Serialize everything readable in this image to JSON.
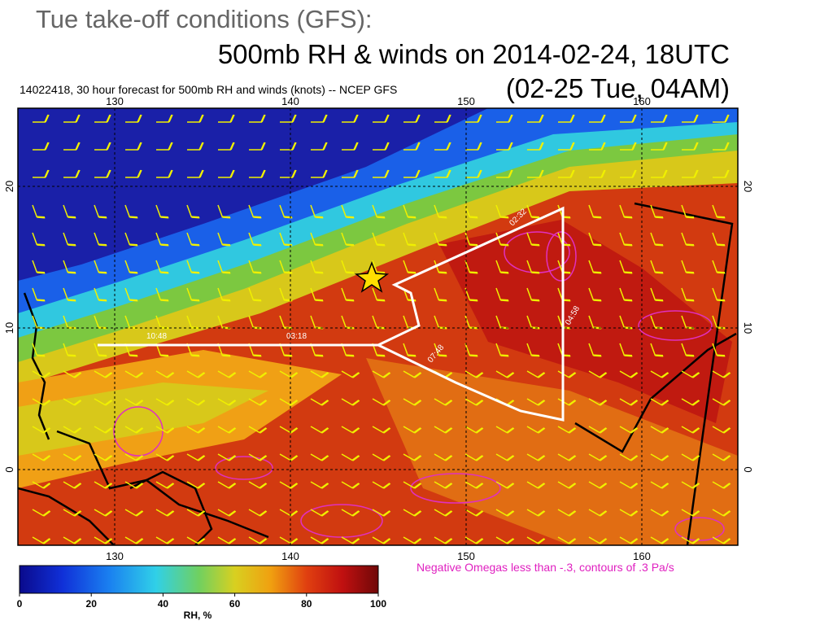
{
  "header": {
    "title": "Tue take-off conditions  (GFS):",
    "subtitle": "500mb RH & winds on 2014-02-24, 18UTC",
    "local_time": "(02-25 Tue, 04AM)"
  },
  "map": {
    "caption": "14022418, 30 hour forecast for 500mb RH and winds (knots)  -- NCEP GFS",
    "lon_ticks": [
      130,
      140,
      150,
      160
    ],
    "lat_ticks": [
      20,
      10,
      0
    ],
    "track_labels": [
      "10:48",
      "03:18",
      "07:48",
      "04:58",
      "02:32"
    ],
    "note": "Negative Omegas less than -.3, contours of .3 Pa/s"
  },
  "colorbar": {
    "ticks": [
      0,
      20,
      40,
      60,
      80,
      100
    ],
    "label": "RH, %"
  }
}
